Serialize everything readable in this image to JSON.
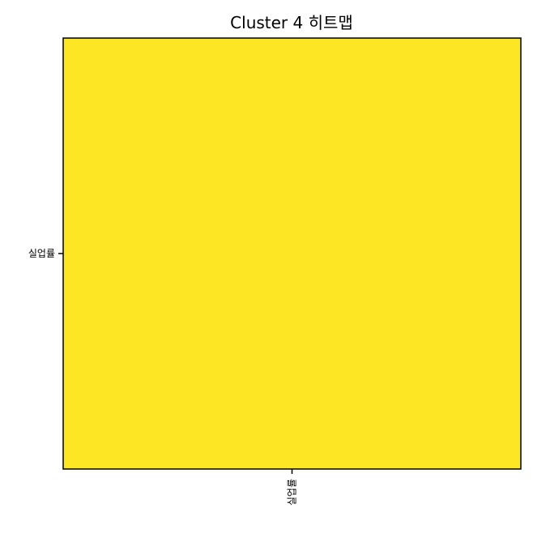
{
  "chart_data": {
    "type": "heatmap",
    "title": "Cluster 4 히트맵",
    "x_categories": [
      "실업률"
    ],
    "y_categories": [
      "실업률"
    ],
    "values": [
      [
        1.0
      ]
    ],
    "cell_colors": [
      [
        "#fde725"
      ]
    ],
    "colorbar": false,
    "grid": false
  },
  "colors": {
    "frame": "#000000",
    "background": "#ffffff"
  }
}
